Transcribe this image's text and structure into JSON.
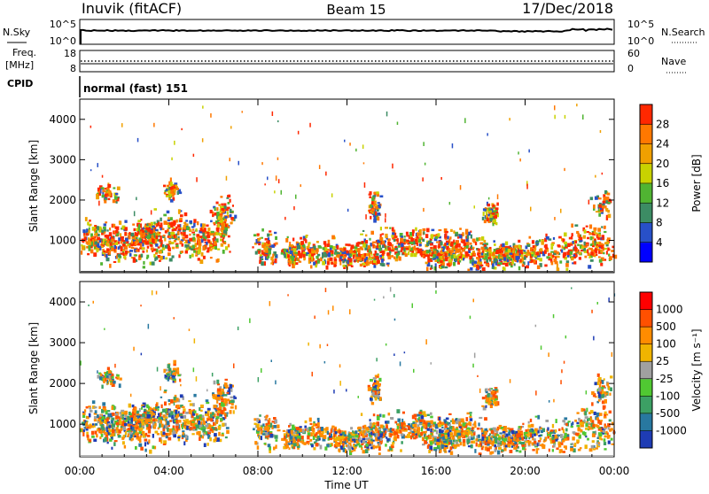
{
  "header": {
    "station": "Inuvik (fitACF)",
    "beam": "Beam 15",
    "date": "17/Dec/2018"
  },
  "sky_panel": {
    "label": "N.Sky",
    "right_label": "N.Search",
    "left_ticks": [
      "10^5",
      "10^0"
    ],
    "right_ticks": [
      "10^5",
      "10^0"
    ]
  },
  "freq_panel": {
    "label_line1": "Freq.",
    "label_line2": "[MHz]",
    "right_label": "Nave",
    "left_ticks": [
      "18",
      "8"
    ],
    "right_ticks": [
      "60",
      "0"
    ]
  },
  "cpid": {
    "label": "CPID",
    "value": "normal (fast) 151"
  },
  "chart_data": [
    {
      "type": "heatmap",
      "name": "power",
      "ylabel": "Slant Range [km]",
      "xlabel": "",
      "y_ticks": [
        "1000",
        "2000",
        "3000",
        "4000"
      ],
      "ylim": [
        200,
        4500
      ],
      "colorbar_label": "Power [dB]",
      "colorbar_ticks": [
        "28",
        "24",
        "20",
        "16",
        "12",
        "8",
        "4"
      ],
      "colorbar_colors": [
        "#0000ff",
        "#2850c8",
        "#3c8c64",
        "#50b432",
        "#c8d200",
        "#f0a000",
        "#ff7800",
        "#ff2800"
      ]
    },
    {
      "type": "heatmap",
      "name": "velocity",
      "ylabel": "Slant Range [km]",
      "xlabel": "Time UT",
      "x_ticks": [
        "00:00",
        "04:00",
        "08:00",
        "12:00",
        "16:00",
        "20:00",
        "00:00"
      ],
      "y_ticks": [
        "1000",
        "2000",
        "3000",
        "4000"
      ],
      "ylim": [
        200,
        4500
      ],
      "colorbar_label": "Velocity [m s⁻¹]",
      "colorbar_ticks": [
        "1000",
        "500",
        "100",
        "25",
        "-25",
        "-100",
        "-500",
        "-1000"
      ],
      "colorbar_colors": [
        "#1e3cb4",
        "#2878a0",
        "#3ca064",
        "#50c832",
        "#a0a0a0",
        "#f0b400",
        "#ff8c00",
        "#ff5000",
        "#ff0000"
      ]
    }
  ]
}
